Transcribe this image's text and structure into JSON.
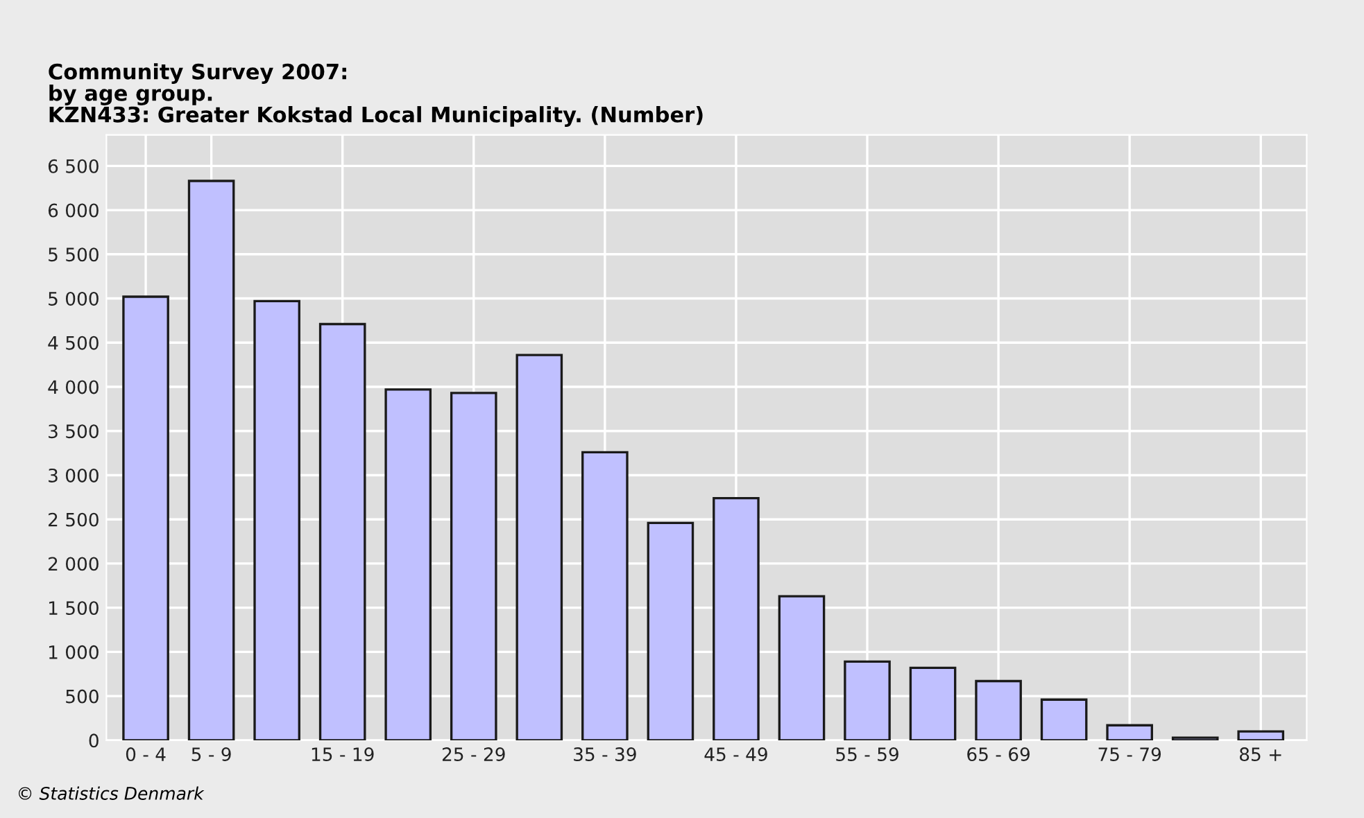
{
  "chart_data": {
    "type": "bar",
    "title": "Community Survey 2007:\nby age group.\nKZN433: Greater Kokstad Local Municipality. (Number)",
    "categories": [
      "0 - 4",
      "5 - 9",
      null,
      "15 - 19",
      null,
      "25 - 29",
      null,
      "35 - 39",
      null,
      "45 - 49",
      null,
      "55 - 59",
      null,
      "65 - 69",
      null,
      "75 - 79",
      null,
      "85 +"
    ],
    "values": [
      5020,
      6330,
      4970,
      4710,
      3970,
      3930,
      4360,
      3260,
      2460,
      2740,
      1630,
      890,
      820,
      670,
      460,
      170,
      30,
      100
    ],
    "color": "#c0c0ff",
    "ylim": [
      0,
      6850
    ],
    "yticks": [
      0,
      500,
      {
        "value": 1000,
        "label": "1 000"
      },
      {
        "value": 1500,
        "label": "1 500"
      },
      {
        "value": 2000,
        "label": "2 000"
      },
      {
        "value": 2500,
        "label": "2 500"
      },
      {
        "value": 3000,
        "label": "3 000"
      },
      {
        "value": 3500,
        "label": "3 500"
      },
      {
        "value": 4000,
        "label": "4 000"
      },
      {
        "value": 4500,
        "label": "4 500"
      },
      {
        "value": 5000,
        "label": "5 000"
      },
      {
        "value": 5500,
        "label": "5 500"
      },
      {
        "value": 6000,
        "label": "6 000"
      },
      {
        "value": 6500,
        "label": "6 500"
      }
    ],
    "grid": true,
    "legend": false,
    "annotations": [
      "© Statistics Denmark"
    ]
  }
}
